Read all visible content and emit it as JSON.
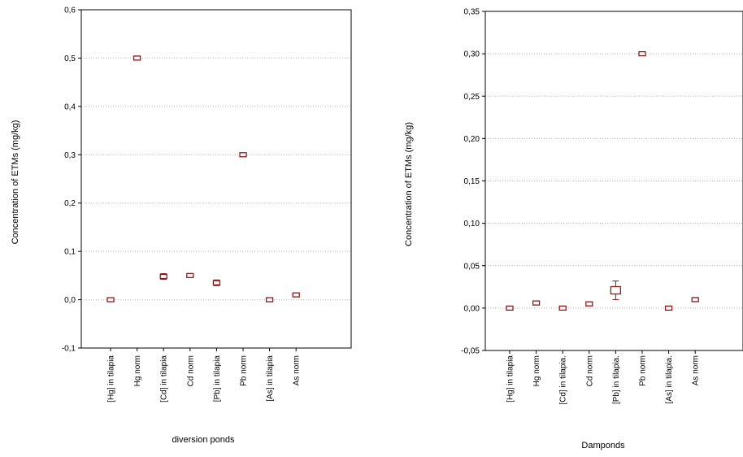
{
  "chart_data": [
    {
      "type": "scatter",
      "title": "",
      "xlabel": "diversion ponds",
      "ylabel": "Concentration of ETMs (mg/kg)",
      "ylim": [
        -0.1,
        0.6
      ],
      "yticks": [
        "-0,1",
        "0,0",
        "0,1",
        "0,2",
        "0,3",
        "0,4",
        "0,5",
        "0,6"
      ],
      "ytick_values": [
        -0.1,
        0.0,
        0.1,
        0.2,
        0.3,
        0.4,
        0.5,
        0.6
      ],
      "grid": true,
      "marker_color": "#8b1a1a",
      "categories": [
        "[Hg] in tilapia",
        "Hg norm",
        "[Cd] in tilapia",
        "Cd norm",
        "[Pb] in tilapia",
        "Pb norm",
        "[As] in tilapia",
        "As norm"
      ],
      "values": [
        0.0,
        0.5,
        0.048,
        0.05,
        0.035,
        0.3,
        0.0,
        0.01
      ],
      "error": [
        0.002,
        0.002,
        0.006,
        0.002,
        0.006,
        0.002,
        0.002,
        0.002
      ]
    },
    {
      "type": "scatter",
      "title": "",
      "xlabel": "Damponds",
      "ylabel": "Concentration of ETMs (mg/kg)",
      "ylim": [
        -0.05,
        0.35
      ],
      "yticks": [
        "-0,05",
        "0,00",
        "0,05",
        "0,10",
        "0,15",
        "0,20",
        "0,25",
        "0,30",
        "0,35"
      ],
      "ytick_values": [
        -0.05,
        0.0,
        0.05,
        0.1,
        0.15,
        0.2,
        0.25,
        0.3,
        0.35
      ],
      "grid": true,
      "marker_color": "#8b1a1a",
      "categories": [
        "[Hg] in tilapia",
        "Hg norm",
        "[Cd] in tilapia.",
        "Cd norm",
        "[Pb] in tilapia.",
        "Pb norm",
        "[As] in tilapia.",
        "As norm"
      ],
      "values": [
        0.0,
        0.006,
        0.0,
        0.005,
        0.021,
        0.3,
        0.0,
        0.01
      ],
      "error": [
        0.001,
        0.001,
        0.001,
        0.001,
        0.011,
        0.001,
        0.001,
        0.001
      ]
    }
  ]
}
